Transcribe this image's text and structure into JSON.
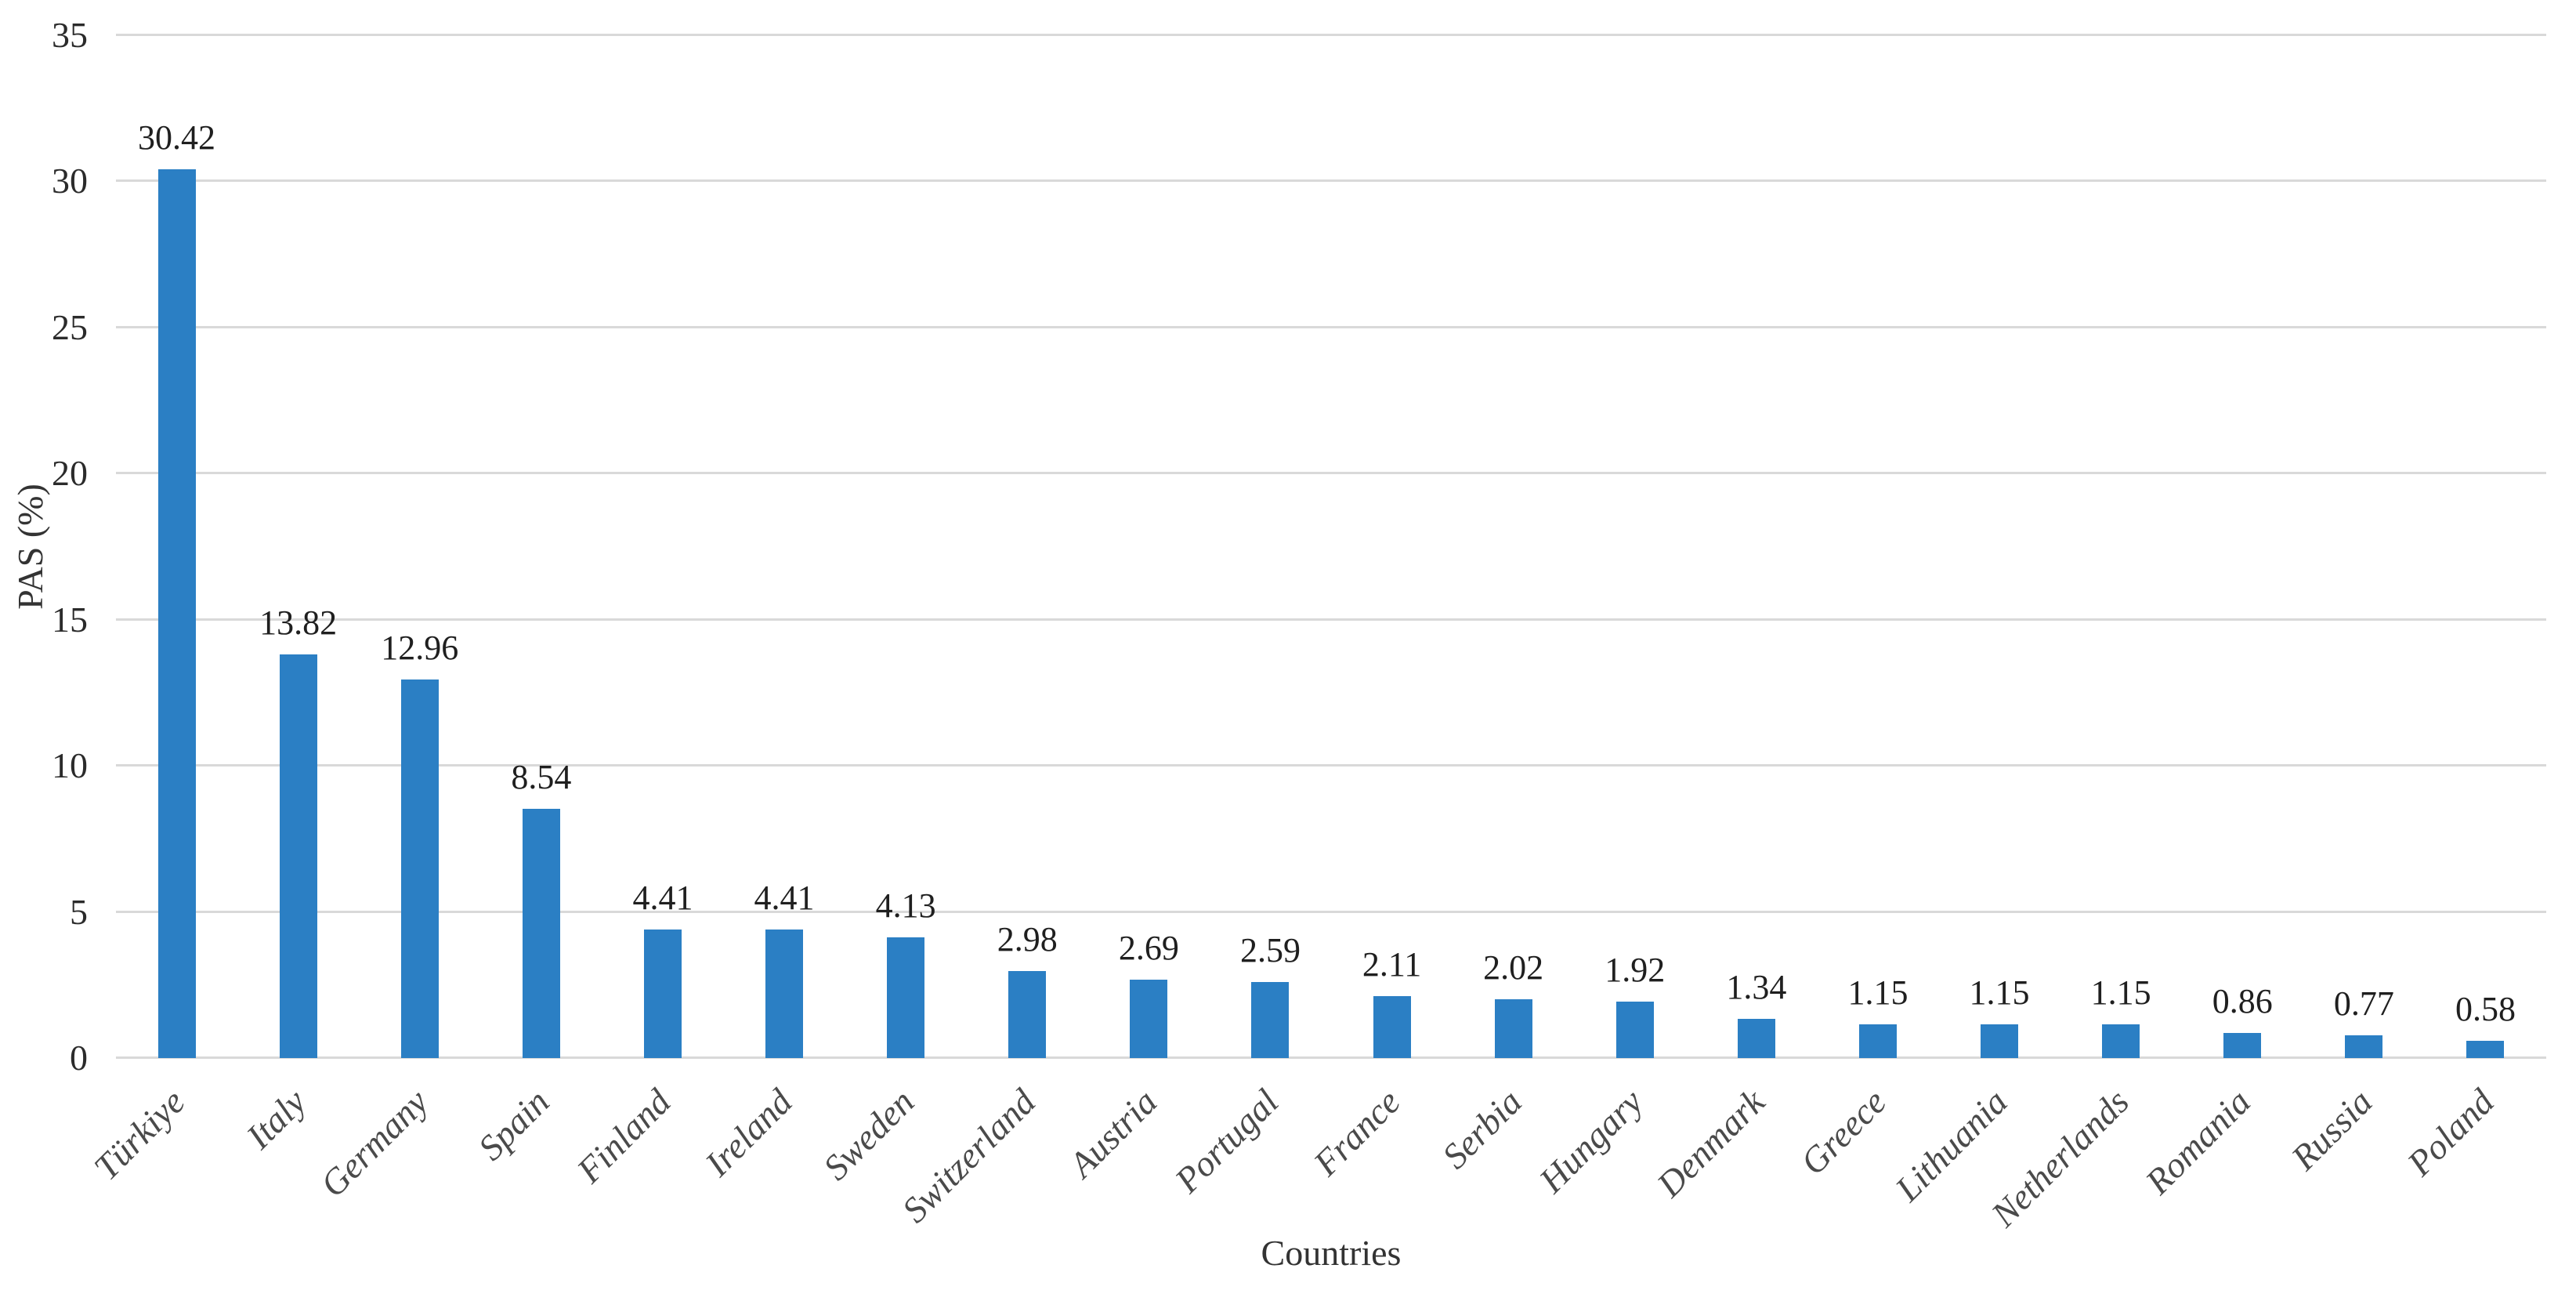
{
  "chart_data": {
    "type": "bar",
    "title": "",
    "xlabel": "Countries",
    "ylabel": "PAS (%)",
    "ylim": [
      0,
      35
    ],
    "yticks": [
      0,
      5,
      10,
      15,
      20,
      25,
      30,
      35
    ],
    "grid": true,
    "legend": false,
    "categories": [
      "Türkiye",
      "Italy",
      "Germany",
      "Spain",
      "Finland",
      "Ireland",
      "Sweden",
      "Switzerland",
      "Austria",
      "Portugal",
      "France",
      "Serbia",
      "Hungary",
      "Denmark",
      "Greece",
      "Lithuania",
      "Netherlands",
      "Romania",
      "Russia",
      "Poland"
    ],
    "values": [
      30.42,
      13.82,
      12.96,
      8.54,
      4.41,
      4.41,
      4.13,
      2.98,
      2.69,
      2.59,
      2.11,
      2.02,
      1.92,
      1.34,
      1.15,
      1.15,
      1.15,
      0.86,
      0.77,
      0.58
    ],
    "value_label_decimals": 2,
    "colors": {
      "bar": "#2b7fc4",
      "gridline": "#d9d9d9",
      "tick_text": "#2b2b2b",
      "value_text": "#1f1f1f",
      "category_text": "#4a4a4a",
      "axis_title_text": "#333333"
    }
  }
}
